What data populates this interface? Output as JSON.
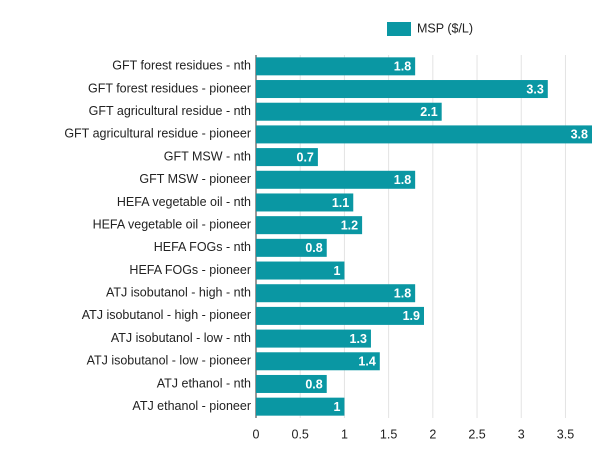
{
  "chart_data": {
    "type": "hbar",
    "legend": "MSP ($/L)",
    "categories": [
      "GFT forest residues - nth",
      "GFT forest residues - pioneer",
      "GFT agricultural residue - nth",
      "GFT agricultural residue - pioneer",
      "GFT MSW - nth",
      "GFT MSW - pioneer",
      "HEFA vegetable oil - nth",
      "HEFA vegetable oil - pioneer",
      "HEFA FOGs - nth",
      "HEFA FOGs - pioneer",
      "ATJ isobutanol - high - nth",
      "ATJ isobutanol - high - pioneer",
      "ATJ isobutanol - low - nth",
      "ATJ isobutanol - low - pioneer",
      "ATJ ethanol - nth",
      "ATJ ethanol - pioneer"
    ],
    "values": [
      1.8,
      3.3,
      2.1,
      3.8,
      0.7,
      1.8,
      1.1,
      1.2,
      0.8,
      1,
      1.8,
      1.9,
      1.3,
      1.4,
      0.8,
      1
    ],
    "color": "#0a97a3",
    "xlim": [
      0,
      3.8
    ],
    "xticks": [
      0,
      0.5,
      1,
      1.5,
      2,
      2.5,
      3,
      3.5
    ],
    "grid": true
  }
}
